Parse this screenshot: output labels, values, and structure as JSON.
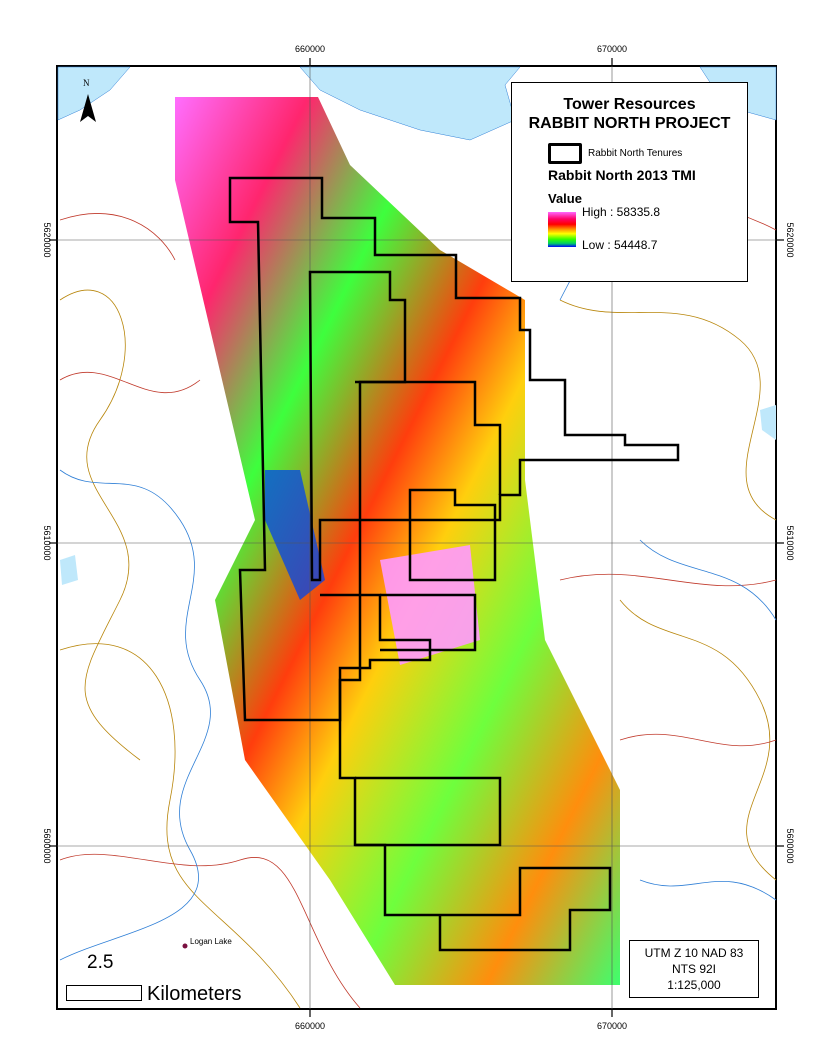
{
  "map": {
    "axes": {
      "x_ticks": [
        "660000",
        "670000"
      ],
      "y_ticks": [
        "5620000",
        "5610000",
        "5600000"
      ]
    },
    "colors": {
      "water": "#bfe8fb",
      "stream": "#2f7fd6",
      "road": "#c0392b",
      "contour": "#b8860b",
      "tenure": "#000000"
    },
    "north_arrow": {
      "label": "N",
      "icon": "north-arrow-icon"
    },
    "place_label": "Logan Lake"
  },
  "legend": {
    "company": "Tower Resources",
    "project": "RABBIT NORTH PROJECT",
    "tenure_label": "Rabbit North Tenures",
    "layer_title": "Rabbit North 2013 TMI",
    "value_heading": "Value",
    "high": "High : 58335.8",
    "low": "Low : 54448.7",
    "ramp_colors": [
      "#ff66ff",
      "#ff0066",
      "#ff0000",
      "#ff9900",
      "#ffff00",
      "#33ff00",
      "#00cc66",
      "#0000ff"
    ]
  },
  "scale": {
    "value": "2.5",
    "unit": "Kilometers"
  },
  "info": {
    "line1": "UTM Z 10 NAD 83",
    "line2": "NTS 92I",
    "line3": "1:125,000"
  }
}
